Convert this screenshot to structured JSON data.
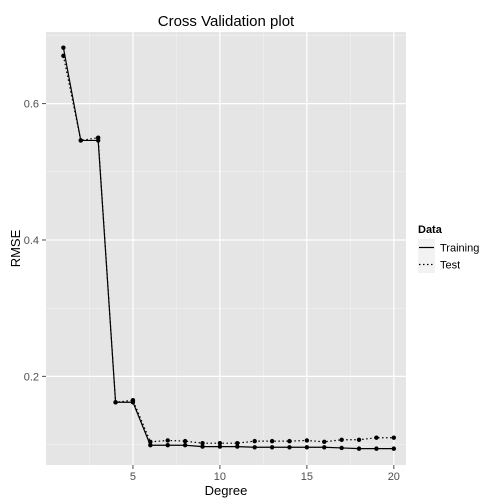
{
  "chart_data": {
    "type": "line",
    "title": "Cross Validation plot",
    "xlabel": "Degree",
    "ylabel": "RMSE",
    "xlim": [
      0.0,
      20.7
    ],
    "ylim": [
      0.07,
      0.705
    ],
    "x_ticks": [
      5,
      10,
      15,
      20
    ],
    "y_ticks": [
      0.2,
      0.4,
      0.6
    ],
    "x_tick_labels": [
      "5",
      "10",
      "15",
      "20"
    ],
    "y_tick_labels": [
      "0.2",
      "0.4",
      "0.6"
    ],
    "grid": true,
    "legend": {
      "title": "Data",
      "placement": "right",
      "entries": [
        "Training",
        "Test"
      ]
    },
    "x": [
      1,
      2,
      3,
      4,
      5,
      6,
      7,
      8,
      9,
      10,
      11,
      12,
      13,
      14,
      15,
      16,
      17,
      18,
      19,
      20
    ],
    "series": [
      {
        "name": "Training",
        "linestyle": "solid",
        "values": [
          0.682,
          0.546,
          0.546,
          0.162,
          0.162,
          0.099,
          0.099,
          0.099,
          0.097,
          0.097,
          0.097,
          0.096,
          0.096,
          0.096,
          0.096,
          0.096,
          0.095,
          0.094,
          0.094,
          0.094
        ]
      },
      {
        "name": "Test",
        "linestyle": "dotted",
        "values": [
          0.67,
          0.546,
          0.55,
          0.162,
          0.165,
          0.104,
          0.106,
          0.105,
          0.102,
          0.102,
          0.102,
          0.105,
          0.105,
          0.105,
          0.106,
          0.104,
          0.107,
          0.107,
          0.11,
          0.11
        ]
      }
    ],
    "colors": {
      "panel_background": "#e5e5e5",
      "grid_major": "#ffffff",
      "grid_minor": "#f2f2f2",
      "line": "#000000",
      "legend_key_background": "#f2f2f2"
    }
  }
}
